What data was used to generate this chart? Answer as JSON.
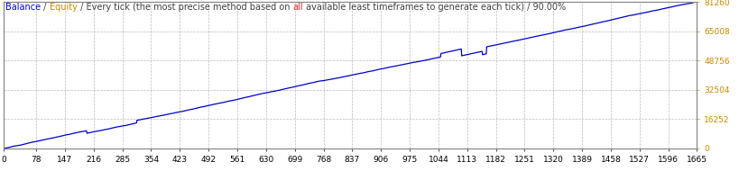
{
  "title_parts": [
    {
      "text": "Balance",
      "color": "#0000EE"
    },
    {
      "text": " / ",
      "color": "#404040"
    },
    {
      "text": "Equity",
      "color": "#CC8800"
    },
    {
      "text": " / Every tick (the most precise method based on ",
      "color": "#404040"
    },
    {
      "text": "all",
      "color": "#DD2222"
    },
    {
      "text": " available least timeframes to generate each tick) / 90.00%",
      "color": "#404040"
    }
  ],
  "line_color": "#0000CC",
  "background_color": "#FFFFFF",
  "plot_bg_color": "#FFFFFF",
  "grid_color": "#AAAAAA",
  "border_color": "#888888",
  "ytick_color": "#CC8800",
  "x_ticks": [
    0,
    78,
    147,
    216,
    285,
    354,
    423,
    492,
    561,
    630,
    699,
    768,
    837,
    906,
    975,
    1044,
    1113,
    1182,
    1251,
    1320,
    1389,
    1458,
    1527,
    1596,
    1665
  ],
  "y_ticks": [
    0,
    16252,
    32504,
    48756,
    65008,
    81260
  ],
  "y_max": 81260,
  "x_max": 1665,
  "title_fontsize": 7.0,
  "tick_fontsize": 6.5
}
